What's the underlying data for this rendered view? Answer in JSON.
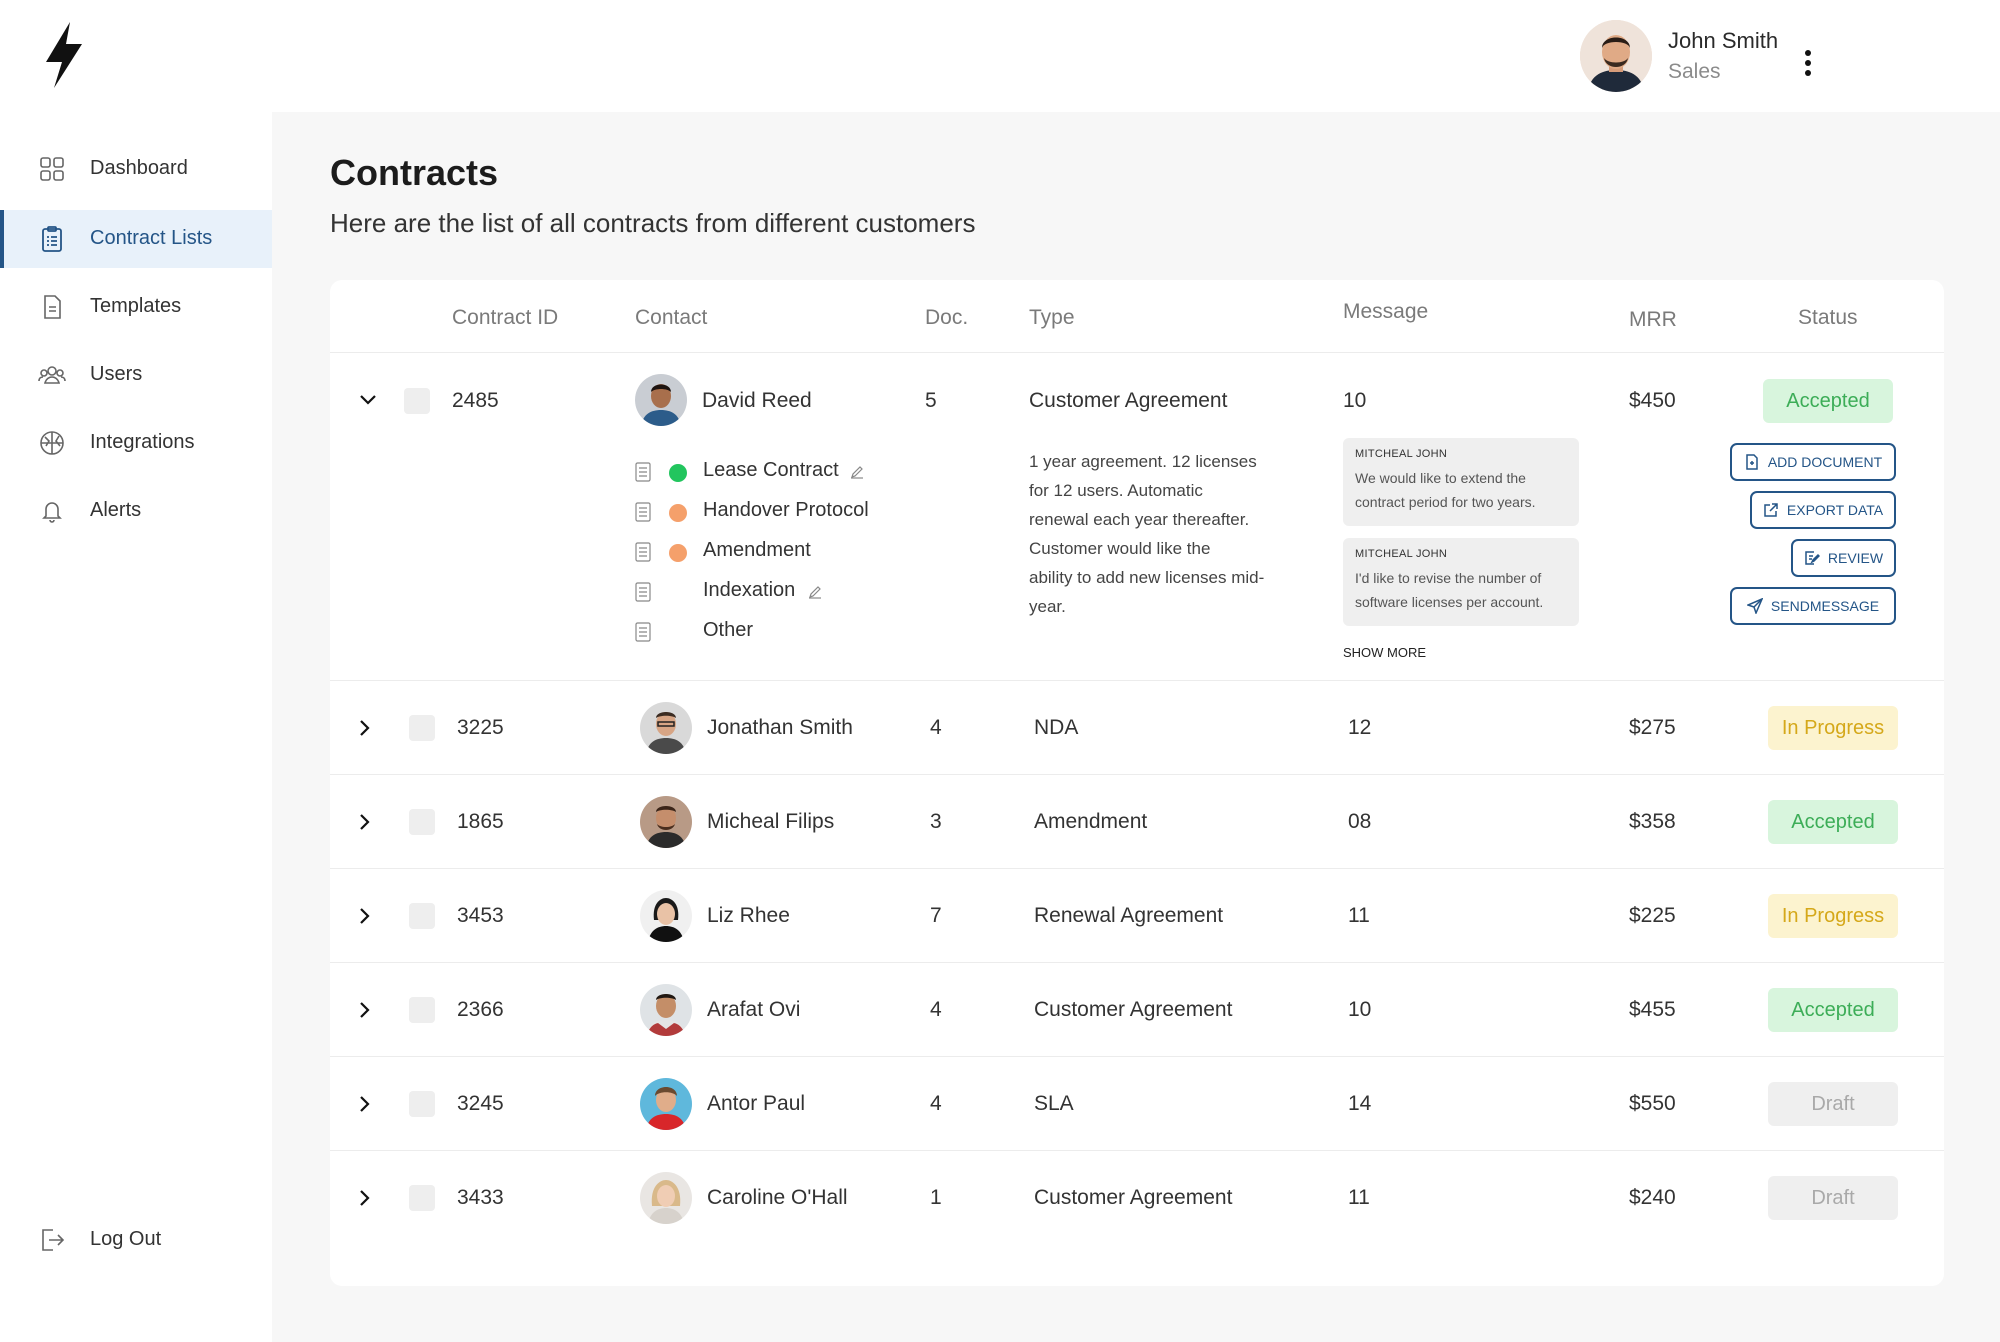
{
  "header": {
    "user_name": "John Smith",
    "user_role": "Sales"
  },
  "sidebar": {
    "items": [
      {
        "label": "Dashboard",
        "icon": "grid-icon"
      },
      {
        "label": "Contract Lists",
        "icon": "clipboard-icon",
        "active": true
      },
      {
        "label": "Templates",
        "icon": "document-icon"
      },
      {
        "label": "Users",
        "icon": "users-icon"
      },
      {
        "label": "Integrations",
        "icon": "globe-icon"
      },
      {
        "label": "Alerts",
        "icon": "bell-icon"
      }
    ],
    "logout_label": "Log Out"
  },
  "page": {
    "title": "Contracts",
    "subtitle": "Here are the list of all contracts from different customers"
  },
  "table": {
    "headers": {
      "contract_id": "Contract ID",
      "contact": "Contact",
      "doc": "Doc.",
      "type": "Type",
      "message": "Message",
      "mrr": "MRR",
      "status": "Status"
    },
    "expanded": {
      "id": "2485",
      "contact": "David Reed",
      "doc": "5",
      "type": "Customer Agreement",
      "message": "10",
      "mrr": "$450",
      "status": "Accepted",
      "documents": [
        {
          "label": "Lease Contract",
          "dot": "#22c55e",
          "editable": true
        },
        {
          "label": "Handover Protocol",
          "dot": "#f5a06b",
          "editable": false
        },
        {
          "label": "Amendment",
          "dot": "#f5a06b",
          "editable": false
        },
        {
          "label": "Indexation",
          "dot": "",
          "editable": true
        },
        {
          "label": "Other",
          "dot": "",
          "editable": false
        }
      ],
      "description": [
        "1 year agreement. 12 licenses",
        "for 12 users. Automatic",
        "renewal each year thereafter.",
        "Customer would like the",
        "ability to add new licenses mid-",
        "year."
      ],
      "messages": [
        {
          "author": "MITCHEAL JOHN",
          "text": [
            "We would like to extend the",
            "contract period for two years."
          ]
        },
        {
          "author": "MITCHEAL JOHN",
          "text": [
            "I'd like to revise the number of",
            "software licenses per account."
          ]
        }
      ],
      "show_more": "SHOW MORE",
      "actions": {
        "add_document": "ADD DOCUMENT",
        "export_data": "EXPORT DATA",
        "review": "REVIEW",
        "send_message": "SENDMESSAGE"
      }
    },
    "rows": [
      {
        "id": "3225",
        "contact": "Jonathan Smith",
        "doc": "4",
        "type": "NDA",
        "message": "12",
        "mrr": "$275",
        "status": "In Progress"
      },
      {
        "id": "1865",
        "contact": "Micheal Filips",
        "doc": "3",
        "type": "Amendment",
        "message": "08",
        "mrr": "$358",
        "status": "Accepted"
      },
      {
        "id": "3453",
        "contact": "Liz Rhee",
        "doc": "7",
        "type": "Renewal Agreement",
        "message": "11",
        "mrr": "$225",
        "status": "In Progress"
      },
      {
        "id": "2366",
        "contact": "Arafat Ovi",
        "doc": "4",
        "type": "Customer Agreement",
        "message": "10",
        "mrr": "$455",
        "status": "Accepted"
      },
      {
        "id": "3245",
        "contact": "Antor Paul",
        "doc": "4",
        "type": "SLA",
        "message": "14",
        "mrr": "$550",
        "status": "Draft"
      },
      {
        "id": "3433",
        "contact": "Caroline O'Hall",
        "doc": "1",
        "type": "Customer Agreement",
        "message": "11",
        "mrr": "$240",
        "status": "Draft"
      }
    ]
  },
  "colors": {
    "accent": "#245587",
    "accepted_bg": "#d8f5dd",
    "accepted_text": "#3cad57",
    "progress_bg": "#fcf3cf",
    "progress_text": "#d5a81a",
    "draft_bg": "#efefef",
    "draft_text": "#a9a9a9"
  }
}
